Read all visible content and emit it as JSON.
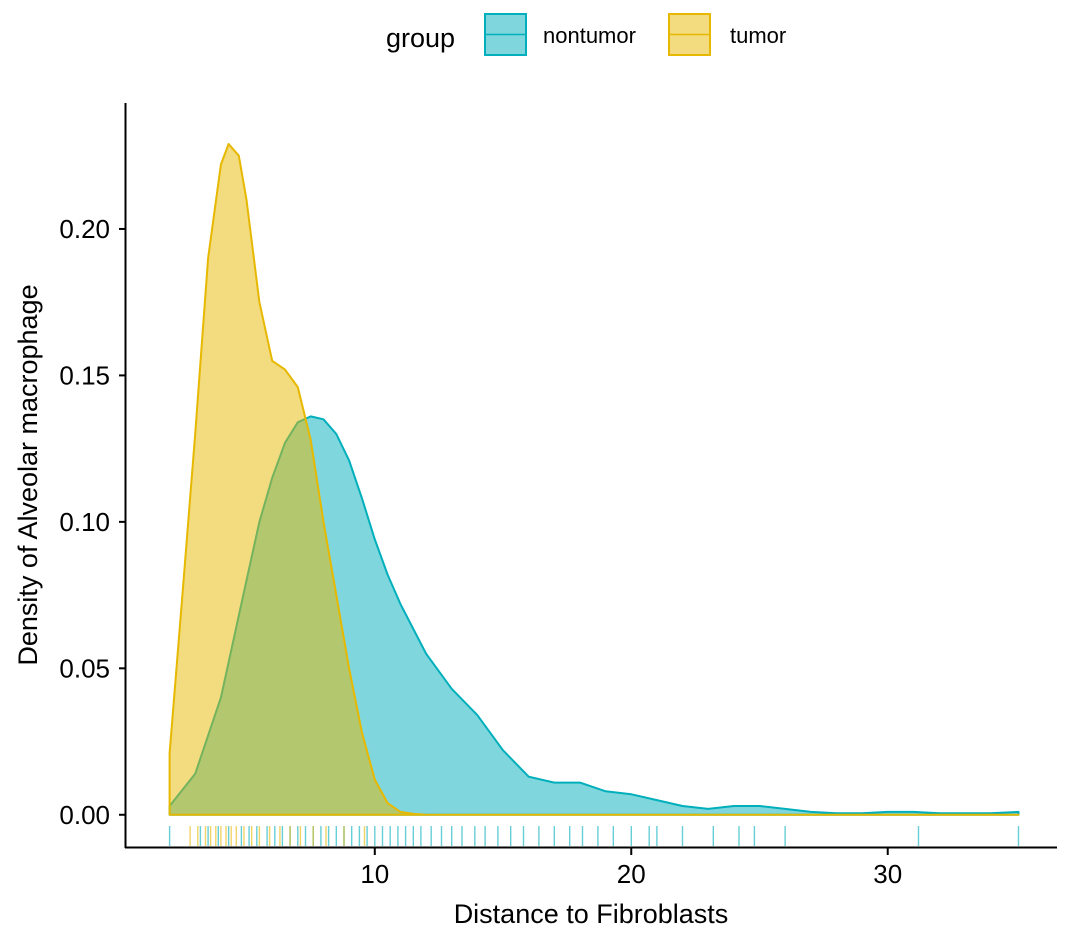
{
  "chart_data": {
    "type": "area",
    "subtype": "density with rug",
    "xlabel": "Distance to Fibroblasts",
    "ylabel": "Density of Alveolar macrophage",
    "xlim": [
      0.3,
      36.6
    ],
    "ylim": [
      -0.011,
      0.243
    ],
    "x_ticks": [
      10,
      20,
      30
    ],
    "y_ticks": [
      0.0,
      0.05,
      0.1,
      0.15,
      0.2
    ],
    "x_tick_labels": [
      "10",
      "20",
      "30"
    ],
    "y_tick_labels": [
      "0.00",
      "0.05",
      "0.10",
      "0.15",
      "0.20"
    ],
    "grid": false,
    "legend": {
      "title": "group",
      "position": "top",
      "entries": [
        "nontumor",
        "tumor"
      ]
    },
    "series": [
      {
        "name": "nontumor",
        "color": "#00AFBB",
        "fill": "#00AFBB",
        "fill_opacity": 0.5,
        "x": [
          2.0,
          3.0,
          4.0,
          5.0,
          5.5,
          6.0,
          6.5,
          7.0,
          7.5,
          8.0,
          8.5,
          9.0,
          9.5,
          10.0,
          10.5,
          11.0,
          12.0,
          13.0,
          14.0,
          15.0,
          16.0,
          17.0,
          18.0,
          19.0,
          20.0,
          21.0,
          22.0,
          23.0,
          24.0,
          25.0,
          26.0,
          27.0,
          28.0,
          29.0,
          30.0,
          31.0,
          32.0,
          33.0,
          34.0,
          35.1
        ],
        "y": [
          0.003,
          0.014,
          0.04,
          0.08,
          0.1,
          0.115,
          0.127,
          0.134,
          0.136,
          0.135,
          0.13,
          0.121,
          0.108,
          0.094,
          0.082,
          0.072,
          0.055,
          0.043,
          0.034,
          0.022,
          0.013,
          0.011,
          0.011,
          0.008,
          0.007,
          0.005,
          0.003,
          0.002,
          0.003,
          0.003,
          0.002,
          0.001,
          0.0005,
          0.0005,
          0.001,
          0.001,
          0.0005,
          0.0005,
          0.0005,
          0.001
        ]
      },
      {
        "name": "tumor",
        "color": "#E7B800",
        "fill": "#E7B800",
        "fill_opacity": 0.5,
        "x": [
          2.0,
          2.5,
          3.0,
          3.5,
          4.0,
          4.3,
          4.7,
          5.0,
          5.5,
          6.0,
          6.5,
          7.0,
          7.5,
          8.0,
          8.5,
          9.0,
          9.5,
          10.0,
          10.5,
          11.0,
          11.5,
          12.0,
          13.0,
          14.0,
          15.0,
          20.0,
          25.0,
          30.0,
          35.1
        ],
        "y": [
          0.021,
          0.075,
          0.13,
          0.19,
          0.222,
          0.229,
          0.225,
          0.21,
          0.175,
          0.155,
          0.152,
          0.146,
          0.128,
          0.1,
          0.075,
          0.05,
          0.028,
          0.012,
          0.004,
          0.001,
          0.0003,
          0.0,
          0.0,
          0.0,
          0.0,
          0.0,
          0.0,
          0.0,
          0.0
        ]
      }
    ],
    "rug": {
      "nontumor": [
        2.0,
        3.2,
        3.5,
        3.9,
        4.3,
        4.8,
        5.1,
        5.4,
        5.8,
        6.1,
        6.4,
        6.7,
        7.0,
        7.3,
        7.6,
        7.9,
        8.2,
        8.5,
        8.8,
        9.1,
        9.4,
        9.7,
        10.0,
        10.3,
        10.6,
        10.9,
        11.2,
        11.5,
        11.8,
        12.2,
        12.6,
        13.0,
        13.4,
        13.9,
        14.3,
        14.8,
        15.3,
        15.8,
        16.4,
        17.0,
        17.6,
        18.1,
        18.7,
        19.3,
        20.0,
        20.7,
        21.0,
        22.0,
        23.2,
        24.2,
        24.8,
        26.0,
        31.2,
        35.1
      ],
      "tumor": [
        2.8,
        3.1,
        3.4,
        3.6,
        3.8,
        4.0,
        4.2,
        4.4,
        4.6,
        4.9,
        5.2,
        5.5,
        5.9,
        6.3,
        6.7,
        7.1,
        7.6,
        8.1,
        8.8,
        9.6
      ]
    }
  }
}
